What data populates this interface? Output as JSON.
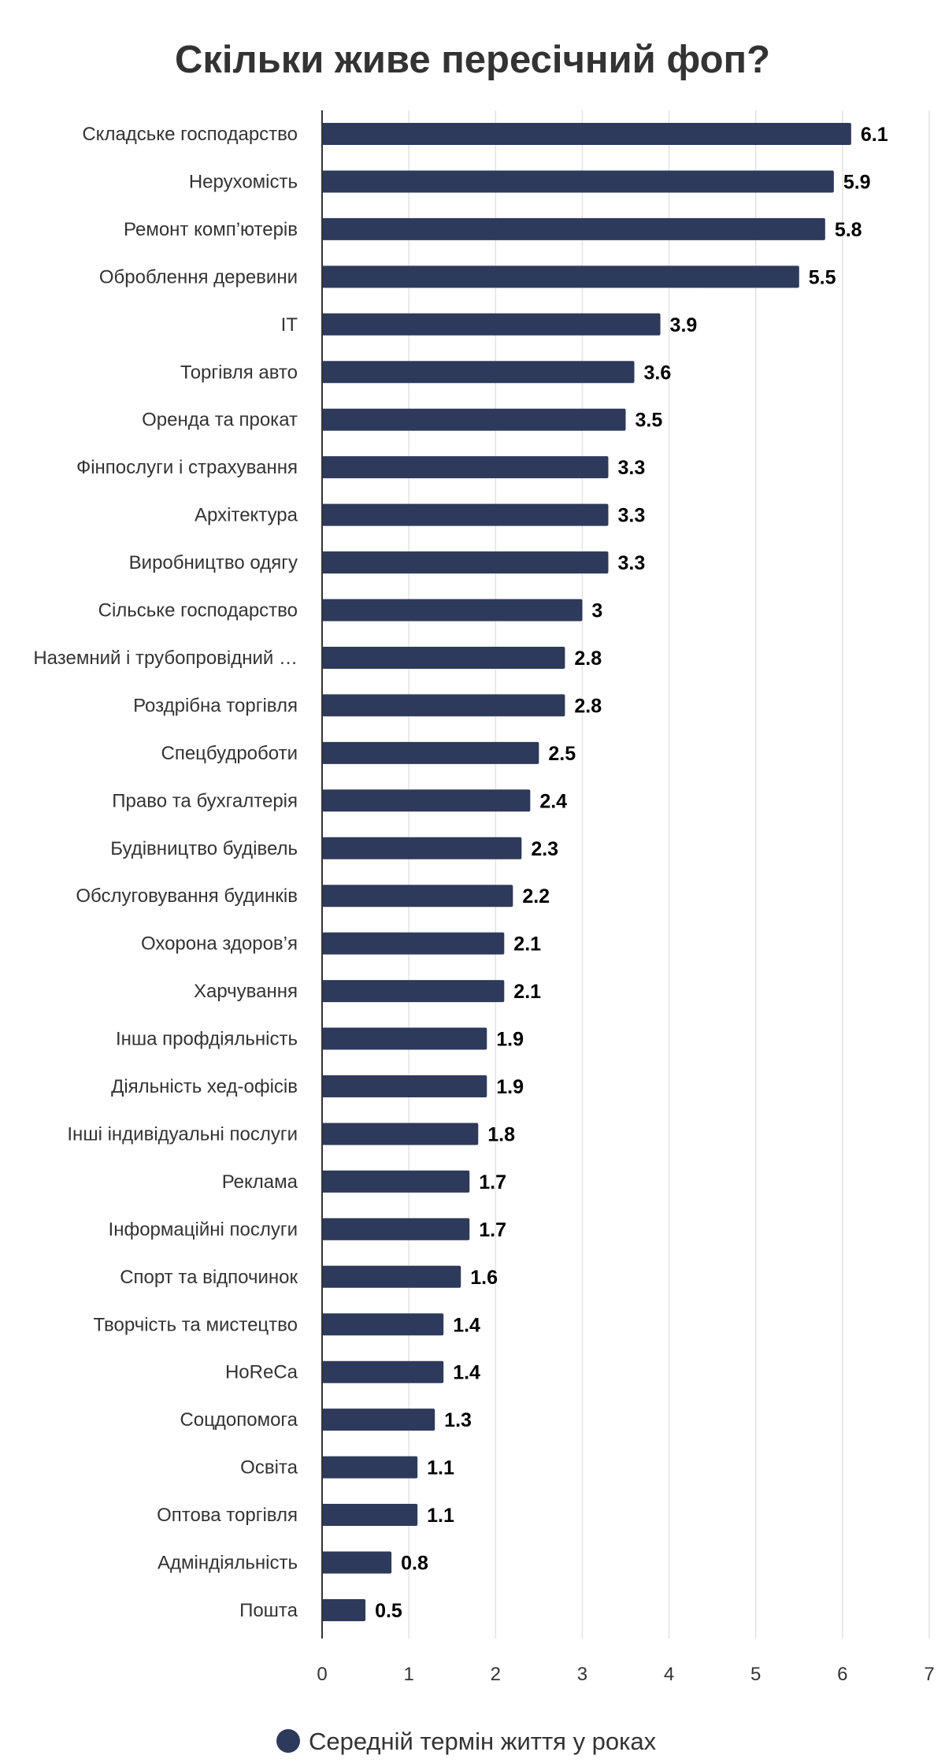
{
  "chart_data": {
    "type": "bar",
    "orientation": "horizontal",
    "title": "Скільки живе пересічний фоп?",
    "categories": [
      "Складське господарство",
      "Нерухомість",
      "Ремонт комп’ютерів",
      "Оброблення деревини",
      "IT",
      "Торгівля авто",
      "Оренда та прокат",
      "Фінпослуги і страхування",
      "Архітектура",
      "Виробництво одягу",
      "Сільське господарство",
      "Наземний і трубопровідний …",
      "Роздрібна торгівля",
      "Спецбудроботи",
      "Право та бухгалтерія",
      "Будівництво будівель",
      "Обслуговування будинків",
      "Охорона здоров’я",
      "Харчування",
      "Інша профдіяльність",
      "Діяльність хед-офісів",
      "Інші індивідуальні послуги",
      "Реклама",
      "Інформаційні послуги",
      "Спорт та відпочинок",
      "Творчість та мистецтво",
      "HoReCa",
      "Соцдопомога",
      "Освіта",
      "Оптова торгівля",
      "Адміндіяльність",
      "Пошта"
    ],
    "series": [
      {
        "name": "Середній термін життя у роках",
        "color": "#2e3a5c",
        "values": [
          6.1,
          5.9,
          5.8,
          5.5,
          3.9,
          3.6,
          3.5,
          3.3,
          3.3,
          3.3,
          3,
          2.8,
          2.8,
          2.5,
          2.4,
          2.3,
          2.2,
          2.1,
          2.1,
          1.9,
          1.9,
          1.8,
          1.7,
          1.7,
          1.6,
          1.4,
          1.4,
          1.3,
          1.1,
          1.1,
          0.8,
          0.5
        ]
      }
    ],
    "xlim": [
      0,
      7
    ],
    "xticks": [
      0,
      1,
      2,
      3,
      4,
      5,
      6,
      7
    ],
    "grid": true,
    "legend": "bottom-center",
    "data_labels": true
  }
}
